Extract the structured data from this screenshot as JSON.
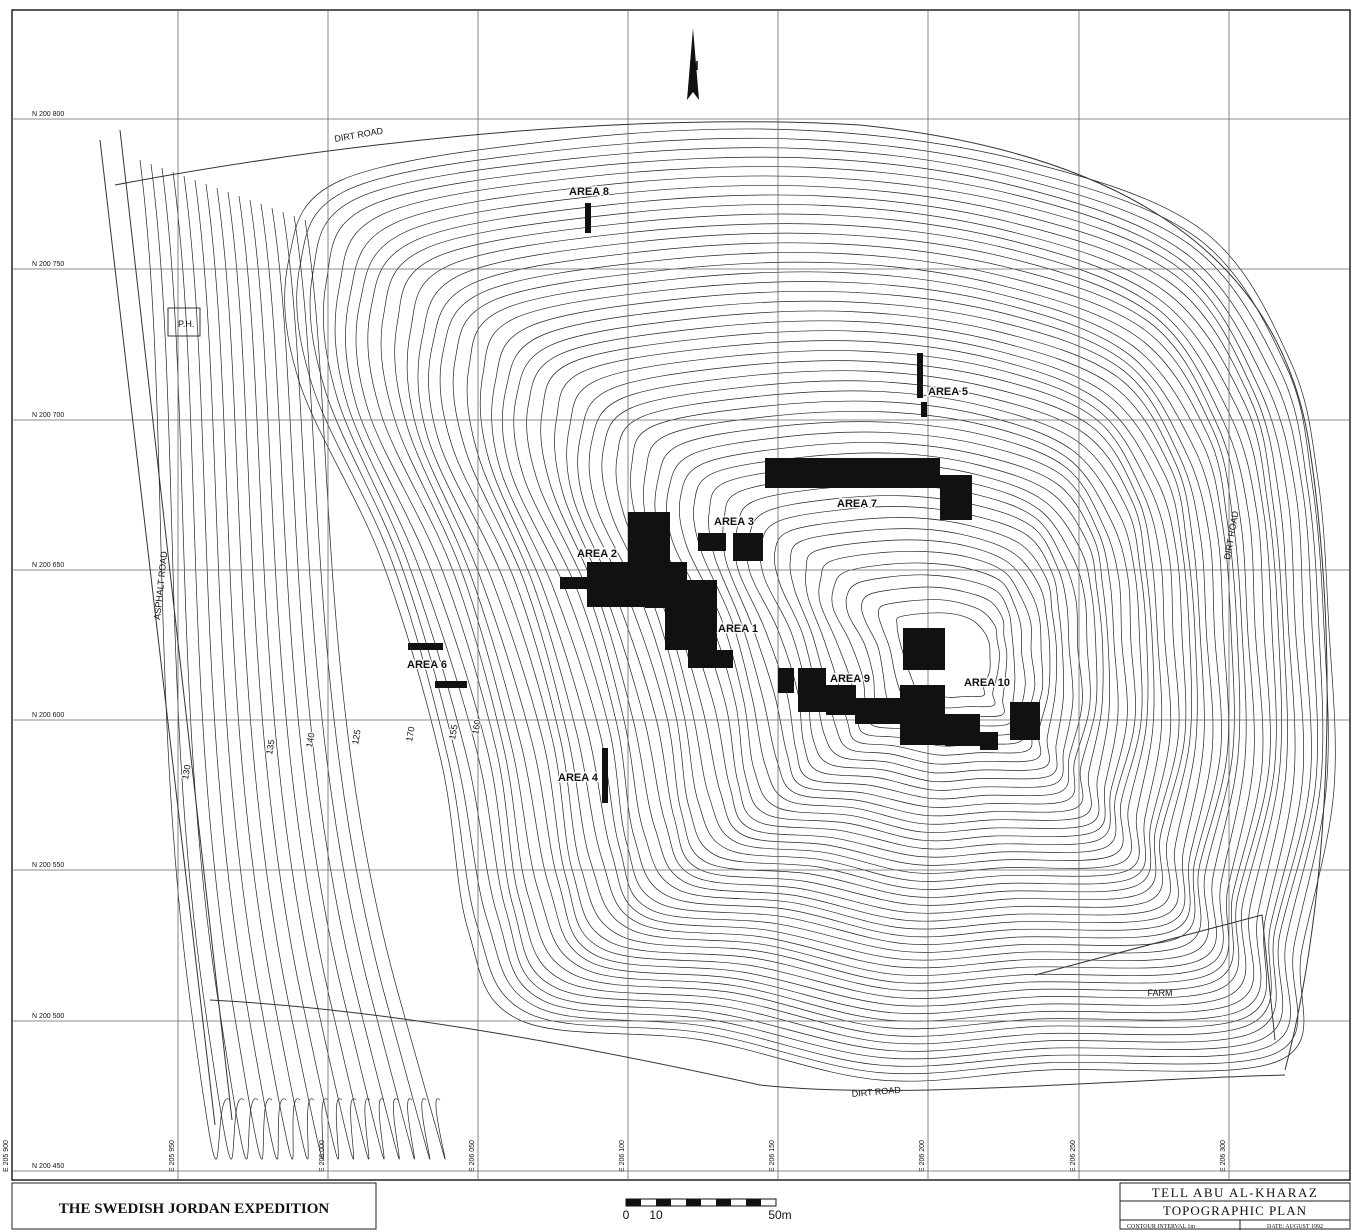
{
  "map": {
    "north_arrow": "N",
    "northings": [
      "N 200 800",
      "N 200 750",
      "N 200 700",
      "N 200 650",
      "N 200 600",
      "N 200 550",
      "N 200 500",
      "N 200 450"
    ],
    "eastings": [
      "E 205 900",
      "E 205 950",
      "E 206 000",
      "E 206 050",
      "E 206 100",
      "E 206 150",
      "E 206 200",
      "E 206 250",
      "E 206 300"
    ],
    "areas": [
      "AREA 1",
      "AREA 2",
      "AREA 3",
      "AREA 4",
      "AREA 5",
      "AREA 6",
      "AREA 7",
      "AREA 8",
      "AREA 9",
      "AREA 10"
    ],
    "roads": [
      "DIRT ROAD",
      "DIRT ROAD",
      "ASPHALT ROAD",
      "DIRT ROAD"
    ],
    "pump_house": "P.H.",
    "farm": "FARM",
    "contour_labels": [
      "130",
      "135",
      "140",
      "125",
      "170",
      "155",
      "160"
    ]
  },
  "title_block": {
    "expedition": "THE SWEDISH JORDAN EXPEDITION",
    "scale_labels": [
      "0",
      "10",
      "50m"
    ],
    "site": "TELL ABU AL-KHARAZ",
    "plan": "TOPOGRAPHIC PLAN",
    "contour_interval": "CONTOUR INTERVAL 1m",
    "date": "DATE: AUGUST 1992"
  }
}
